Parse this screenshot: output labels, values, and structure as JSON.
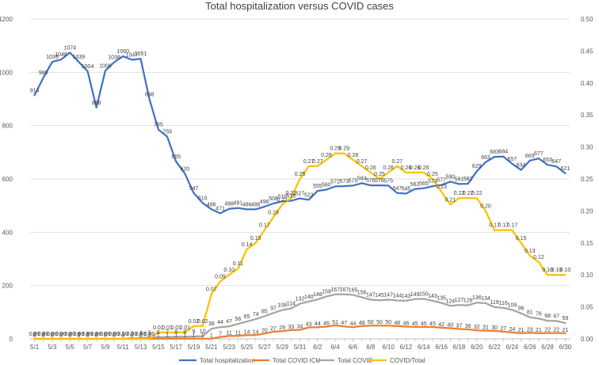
{
  "chart_data": {
    "type": "line",
    "title": "Total  hospitalization versus COVID cases",
    "x": [
      "5/1",
      "5/2",
      "5/3",
      "5/4",
      "5/5",
      "5/6",
      "5/7",
      "5/8",
      "5/9",
      "5/10",
      "5/11",
      "5/12",
      "5/13",
      "5/14",
      "5/15",
      "5/16",
      "5/17",
      "5/18",
      "5/19",
      "5/20",
      "5/21",
      "5/22",
      "5/23",
      "5/24",
      "5/25",
      "5/26",
      "5/27",
      "5/28",
      "5/29",
      "5/30",
      "5/31",
      "6/1",
      "6/2",
      "6/3",
      "6/4",
      "6/5",
      "6/6",
      "6/7",
      "6/8",
      "6/9",
      "6/10",
      "6/11",
      "6/12",
      "6/13",
      "6/14",
      "6/15",
      "6/16",
      "6/17",
      "6/18",
      "6/19",
      "6/20",
      "6/21",
      "6/22",
      "6/23",
      "6/24",
      "6/25",
      "6/26",
      "6/27",
      "6/28",
      "6/29",
      "6/30"
    ],
    "x_tick_labels": [
      "5/1",
      "5/3",
      "5/5",
      "5/7",
      "5/9",
      "5/11",
      "5/13",
      "5/15",
      "5/17",
      "5/19",
      "5/21",
      "5/23",
      "5/25",
      "5/27",
      "5/29",
      "5/31",
      "6/2",
      "6/4",
      "6/6",
      "6/8",
      "6/10",
      "6/12",
      "6/14",
      "6/16",
      "6/18",
      "6/20",
      "6/22",
      "6/24",
      "6/26",
      "6/28",
      "6/30"
    ],
    "y_left": {
      "min": 0,
      "max": 1200,
      "ticks": [
        "0",
        "200",
        "400",
        "600",
        "800",
        "1000",
        "1200"
      ]
    },
    "y_right": {
      "min": 0,
      "max": 0.5,
      "ticks": [
        "0.00",
        "0.05",
        "0.10",
        "0.15",
        "0.20",
        "0.25",
        "0.30",
        "0.35",
        "0.40",
        "0.45",
        "0.50"
      ]
    },
    "series": [
      {
        "name": "Total hospitalization",
        "axis": "left",
        "color": "#4472C4",
        "values": [
          914,
          980,
          1039,
          1048,
          1074,
          1039,
          1004,
          868,
          1006,
          1038,
          1060,
          1047,
          1051,
          898,
          785,
          759,
          665,
          620,
          547,
          510,
          486,
          471,
          488,
          491,
          486,
          486,
          496,
          508,
          516,
          518,
          527,
          522,
          555,
          560,
          572,
          573,
          575,
          584,
          576,
          576,
          575,
          547,
          545,
          562,
          565,
          573,
          577,
          590,
          581,
          582,
          629,
          663,
          683,
          684,
          657,
          634,
          669,
          677,
          653,
          647,
          621
        ]
      },
      {
        "name": "Total COVID ICU",
        "axis": "left",
        "color": "#ED7D31",
        "values": [
          0,
          0,
          0,
          0,
          0,
          0,
          0,
          0,
          0,
          0,
          0,
          0,
          0,
          0,
          1,
          1,
          1,
          1,
          1,
          1,
          1,
          7,
          11,
          11,
          14,
          14,
          20,
          27,
          29,
          33,
          34,
          43,
          44,
          46,
          51,
          47,
          44,
          48,
          50,
          50,
          50,
          48,
          46,
          45,
          45,
          45,
          42,
          40,
          37,
          36,
          32,
          31,
          30,
          27,
          24,
          21,
          23,
          21,
          22,
          22,
          21
        ]
      },
      {
        "name": "Total COVID",
        "axis": "left",
        "color": "#A5A5A5",
        "values": [
          0,
          0,
          0,
          0,
          0,
          0,
          0,
          0,
          0,
          0,
          1,
          2,
          4,
          5,
          6,
          7,
          8,
          8,
          9,
          10,
          38,
          44,
          47,
          56,
          65,
          74,
          85,
          97,
          108,
          114,
          132,
          140,
          148,
          159,
          167,
          167,
          165,
          156,
          147,
          145,
          147,
          144,
          143,
          149,
          150,
          143,
          135,
          124,
          127,
          126,
          136,
          134,
          119,
          116,
          109,
          96,
          81,
          76,
          68,
          67,
          59
        ]
      },
      {
        "name": "COVID/Total",
        "axis": "right",
        "color": "#FFC000",
        "values": [
          0,
          0,
          0,
          0,
          0,
          0,
          0,
          0,
          0,
          0,
          0,
          0,
          0,
          0,
          0.01,
          0.01,
          0.01,
          0.01,
          0.02,
          0.02,
          0.07,
          0.09,
          0.1,
          0.11,
          0.14,
          0.15,
          0.17,
          0.19,
          0.21,
          0.22,
          0.25,
          0.27,
          0.27,
          0.28,
          0.29,
          0.29,
          0.28,
          0.27,
          0.26,
          0.25,
          0.26,
          0.27,
          0.26,
          0.26,
          0.26,
          0.25,
          0.23,
          0.21,
          0.22,
          0.22,
          0.22,
          0.2,
          0.17,
          0.17,
          0.17,
          0.15,
          0.13,
          0.12,
          0.1,
          0.1,
          0.1
        ]
      }
    ],
    "legend": "bottom"
  }
}
